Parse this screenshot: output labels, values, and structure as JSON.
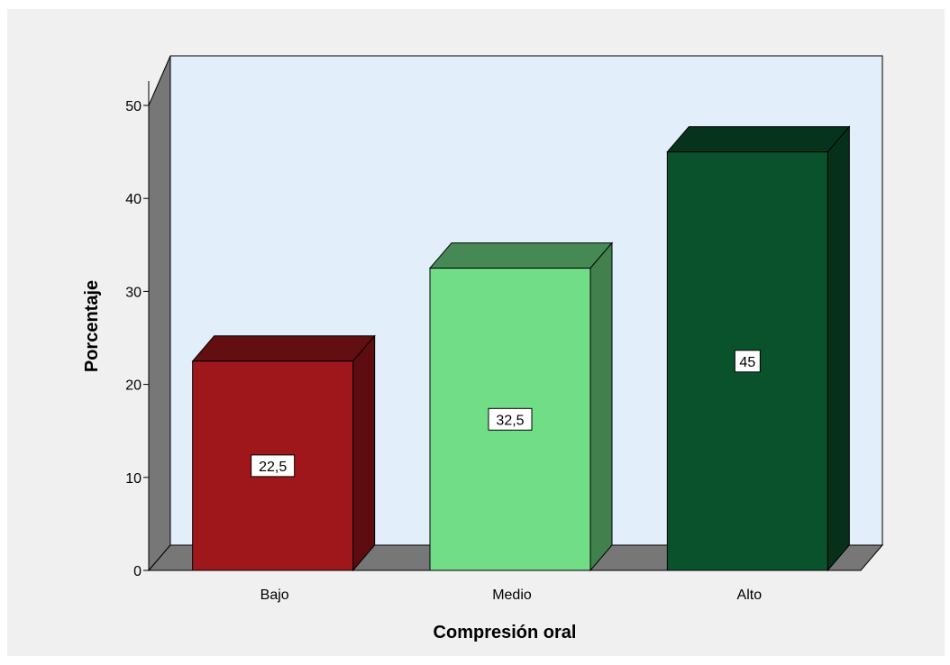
{
  "chart_data": {
    "type": "bar",
    "title": "",
    "categories": [
      "Bajo",
      "Medio",
      "Alto"
    ],
    "values": [
      22.5,
      32.5,
      45
    ],
    "value_labels": [
      "22,5",
      "32,5",
      "45"
    ],
    "colors": [
      "#a0171b",
      "#72dd87",
      "#0a522c"
    ],
    "xlabel": "Compresión oral",
    "ylabel": "Porcentaje",
    "ylim": [
      0,
      50
    ],
    "yticks": [
      0,
      10,
      20,
      30,
      40,
      50
    ],
    "grid": false,
    "style": "3d",
    "background": "#e2eefa",
    "outer_background": "#f0f0f0",
    "wall_color": "#777777"
  }
}
